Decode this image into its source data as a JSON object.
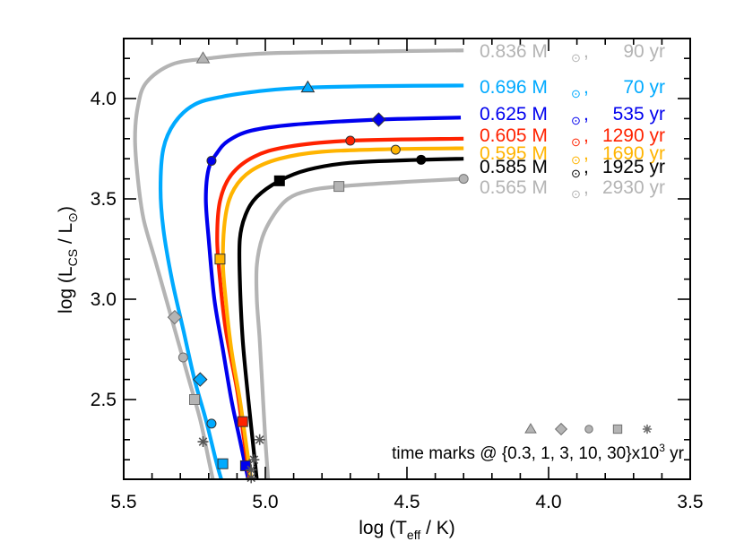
{
  "chart_data": {
    "type": "line",
    "title": "",
    "xlabel": "log (T_eff / K)",
    "ylabel": "log (L_CS / L_sun)",
    "xlim": [
      5.5,
      3.5
    ],
    "ylim": [
      2.1,
      4.3
    ],
    "x_inverted": true,
    "xticks": [
      5.5,
      5.0,
      4.5,
      4.0,
      3.5
    ],
    "xtick_labels": [
      "5.5",
      "5.0",
      "4.5",
      "4.0",
      "3.5"
    ],
    "yticks": [
      2.5,
      3.0,
      3.5,
      4.0
    ],
    "ytick_labels": [
      "2.5",
      "3.0",
      "3.5",
      "4.0"
    ],
    "grid": false,
    "legend_position": "right, inline labels at track ends",
    "series": [
      {
        "name": "0.836 M☉",
        "mass": "0.836",
        "time": "90 yr",
        "color": "#b4b4b4",
        "points": [
          [
            4.3,
            4.24
          ],
          [
            4.6,
            4.235
          ],
          [
            5.0,
            4.225
          ],
          [
            5.2,
            4.2
          ],
          [
            5.33,
            4.17
          ],
          [
            5.42,
            4.08
          ],
          [
            5.45,
            3.96
          ],
          [
            5.46,
            3.8
          ],
          [
            5.45,
            3.6
          ],
          [
            5.43,
            3.4
          ],
          [
            5.39,
            3.2
          ],
          [
            5.35,
            3.0
          ],
          [
            5.31,
            2.8
          ],
          [
            5.27,
            2.6
          ],
          [
            5.23,
            2.4
          ],
          [
            5.2,
            2.2
          ],
          [
            5.185,
            2.1
          ]
        ]
      },
      {
        "name": "0.696 M☉",
        "mass": "0.696",
        "time": "70 yr",
        "color": "#00aaff",
        "points": [
          [
            4.3,
            4.065
          ],
          [
            4.6,
            4.062
          ],
          [
            4.85,
            4.055
          ],
          [
            5.0,
            4.04
          ],
          [
            5.15,
            4.01
          ],
          [
            5.25,
            3.97
          ],
          [
            5.32,
            3.88
          ],
          [
            5.36,
            3.75
          ],
          [
            5.37,
            3.55
          ],
          [
            5.36,
            3.35
          ],
          [
            5.33,
            3.1
          ],
          [
            5.29,
            2.85
          ],
          [
            5.25,
            2.6
          ],
          [
            5.21,
            2.4
          ],
          [
            5.175,
            2.2
          ],
          [
            5.155,
            2.1
          ]
        ]
      },
      {
        "name": "0.625 M☉",
        "mass": "0.625",
        "time": "535 yr",
        "color": "#0000ee",
        "points": [
          [
            4.31,
            3.905
          ],
          [
            4.6,
            3.895
          ],
          [
            4.9,
            3.87
          ],
          [
            5.05,
            3.84
          ],
          [
            5.13,
            3.79
          ],
          [
            5.17,
            3.73
          ],
          [
            5.2,
            3.65
          ],
          [
            5.21,
            3.5
          ],
          [
            5.2,
            3.3
          ],
          [
            5.18,
            3.0
          ],
          [
            5.15,
            2.75
          ],
          [
            5.12,
            2.5
          ],
          [
            5.09,
            2.3
          ],
          [
            5.06,
            2.1
          ]
        ]
      },
      {
        "name": "0.605 M☉",
        "mass": "0.605",
        "time": "1290 yr",
        "color": "#ff2200",
        "points": [
          [
            4.3,
            3.8
          ],
          [
            4.7,
            3.79
          ],
          [
            4.92,
            3.76
          ],
          [
            5.04,
            3.71
          ],
          [
            5.12,
            3.62
          ],
          [
            5.16,
            3.49
          ],
          [
            5.17,
            3.3
          ],
          [
            5.16,
            3.1
          ],
          [
            5.14,
            2.85
          ],
          [
            5.1,
            2.55
          ],
          [
            5.08,
            2.35
          ],
          [
            5.055,
            2.1
          ]
        ]
      },
      {
        "name": "0.595 M☉",
        "mass": "0.595",
        "time": "1690 yr",
        "color": "#ffb400",
        "points": [
          [
            4.3,
            3.752
          ],
          [
            4.55,
            3.748
          ],
          [
            4.8,
            3.735
          ],
          [
            4.95,
            3.7
          ],
          [
            5.05,
            3.64
          ],
          [
            5.11,
            3.55
          ],
          [
            5.14,
            3.42
          ],
          [
            5.15,
            3.2
          ],
          [
            5.14,
            3.0
          ],
          [
            5.12,
            2.75
          ],
          [
            5.09,
            2.5
          ],
          [
            5.07,
            2.3
          ],
          [
            5.05,
            2.1
          ]
        ]
      },
      {
        "name": "0.585 M☉",
        "mass": "0.585",
        "time": "1925 yr",
        "color": "#000000",
        "points": [
          [
            4.3,
            3.7
          ],
          [
            4.45,
            3.695
          ],
          [
            4.7,
            3.68
          ],
          [
            4.85,
            3.645
          ],
          [
            4.95,
            3.59
          ],
          [
            5.03,
            3.51
          ],
          [
            5.07,
            3.42
          ],
          [
            5.09,
            3.3
          ],
          [
            5.09,
            3.1
          ],
          [
            5.08,
            2.8
          ],
          [
            5.06,
            2.5
          ],
          [
            5.045,
            2.3
          ],
          [
            5.03,
            2.1
          ]
        ]
      },
      {
        "name": "0.565 M☉",
        "mass": "0.565",
        "time": "2930 yr",
        "color": "#b4b4b4",
        "points": [
          [
            4.3,
            3.6
          ],
          [
            4.5,
            3.585
          ],
          [
            4.74,
            3.562
          ],
          [
            4.85,
            3.54
          ],
          [
            4.92,
            3.5
          ],
          [
            4.97,
            3.42
          ],
          [
            5.01,
            3.31
          ],
          [
            5.03,
            3.17
          ],
          [
            5.03,
            3.0
          ],
          [
            5.02,
            2.8
          ],
          [
            5.01,
            2.55
          ],
          [
            5.0,
            2.3
          ],
          [
            4.99,
            2.1
          ]
        ]
      }
    ],
    "time_marks": {
      "label": "time marks @ {0.3, 1, 3, 10, 30}x10^3 yr",
      "symbols": [
        "triangle",
        "diamond",
        "circle",
        "square",
        "star"
      ],
      "values_kyr": [
        0.3,
        1,
        3,
        10,
        30
      ]
    },
    "markers": [
      {
        "series": 0,
        "symbol": "triangle",
        "x": 5.22,
        "y": 4.2
      },
      {
        "series": 0,
        "symbol": "diamond",
        "x": 5.32,
        "y": 2.91
      },
      {
        "series": 0,
        "symbol": "circle",
        "x": 5.29,
        "y": 2.71
      },
      {
        "series": 0,
        "symbol": "square",
        "x": 5.25,
        "y": 2.5
      },
      {
        "series": 0,
        "symbol": "star",
        "x": 5.22,
        "y": 2.29
      },
      {
        "series": 1,
        "symbol": "triangle",
        "x": 4.85,
        "y": 4.055
      },
      {
        "series": 1,
        "symbol": "diamond",
        "x": 5.23,
        "y": 2.6
      },
      {
        "series": 1,
        "symbol": "circle",
        "x": 5.19,
        "y": 2.38
      },
      {
        "series": 1,
        "symbol": "square",
        "x": 5.15,
        "y": 2.18
      },
      {
        "series": 2,
        "symbol": "circle",
        "x": 5.19,
        "y": 3.69
      },
      {
        "series": 2,
        "symbol": "diamond",
        "x": 4.6,
        "y": 3.895
      },
      {
        "series": 2,
        "symbol": "square",
        "x": 5.07,
        "y": 2.17
      },
      {
        "series": 3,
        "symbol": "circle",
        "x": 4.7,
        "y": 3.79
      },
      {
        "series": 3,
        "symbol": "square",
        "x": 5.08,
        "y": 2.39
      },
      {
        "series": 3,
        "symbol": "star",
        "x": 5.05,
        "y": 2.11
      },
      {
        "series": 4,
        "symbol": "circle",
        "x": 4.54,
        "y": 3.745
      },
      {
        "series": 4,
        "symbol": "square",
        "x": 5.16,
        "y": 3.2
      },
      {
        "series": 4,
        "symbol": "star",
        "x": 5.05,
        "y": 2.15
      },
      {
        "series": 5,
        "symbol": "circle",
        "x": 4.45,
        "y": 3.695
      },
      {
        "series": 5,
        "symbol": "square",
        "x": 4.95,
        "y": 3.59
      },
      {
        "series": 5,
        "symbol": "star",
        "x": 5.04,
        "y": 2.2
      },
      {
        "series": 6,
        "symbol": "circle",
        "x": 4.3,
        "y": 3.6
      },
      {
        "series": 6,
        "symbol": "square",
        "x": 4.74,
        "y": 3.562
      },
      {
        "series": 6,
        "symbol": "star",
        "x": 5.02,
        "y": 2.3
      }
    ]
  },
  "labels": {
    "xlabel_main": "log (T",
    "xlabel_sub": "eff",
    "xlabel_tail": " / K)",
    "ylabel_main": "log (L",
    "ylabel_sub": "CS",
    "ylabel_mid": " / L",
    "ylabel_tail": ")",
    "legend_mass_unit": "M",
    "timemarks_prefix": "time marks @ {0.3, 1, 3, 10, 30}x10",
    "timemarks_exp": "3",
    "timemarks_suffix": " yr"
  }
}
